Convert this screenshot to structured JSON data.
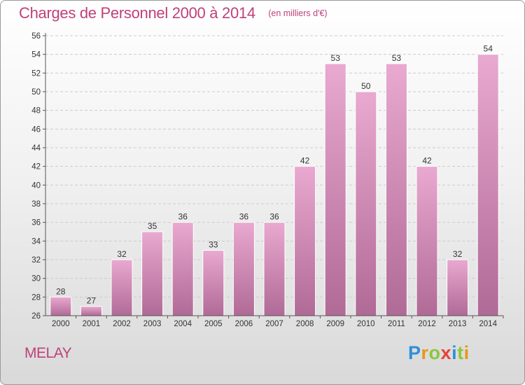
{
  "header": {
    "title": "Charges de Personnel 2000 à 2014",
    "subtitle": "(en milliers d'€)"
  },
  "footer": {
    "commune": "MELAY",
    "brand_letters": [
      {
        "char": "P",
        "color": "#2f8fd6"
      },
      {
        "char": "r",
        "color": "#e8961e"
      },
      {
        "char": "o",
        "color": "#8cc63e"
      },
      {
        "char": "x",
        "color": "#e8413c"
      },
      {
        "char": "i",
        "color": "#2f8fd6"
      },
      {
        "char": "t",
        "color": "#8cc63e"
      },
      {
        "char": "i",
        "color": "#e8961e"
      }
    ]
  },
  "colors": {
    "title": "#c0407a",
    "bar_top": "#e9a9d0",
    "bar_bottom": "#b06a96",
    "axis": "#555555",
    "grid": "#cccccc"
  },
  "chart_data": {
    "type": "bar",
    "title": "Charges de Personnel 2000 à 2014",
    "subtitle": "(en milliers d'€)",
    "xlabel": "",
    "ylabel": "",
    "categories": [
      "2000",
      "2001",
      "2002",
      "2003",
      "2004",
      "2005",
      "2006",
      "2007",
      "2008",
      "2009",
      "2010",
      "2011",
      "2012",
      "2013",
      "2014"
    ],
    "values": [
      28,
      27,
      32,
      35,
      36,
      33,
      36,
      36,
      42,
      53,
      50,
      53,
      42,
      32,
      54
    ],
    "ylim": [
      26,
      56
    ],
    "yticks": [
      26,
      28,
      30,
      32,
      34,
      36,
      38,
      40,
      42,
      44,
      46,
      48,
      50,
      52,
      54,
      56
    ],
    "grid": true,
    "data_labels": true
  }
}
